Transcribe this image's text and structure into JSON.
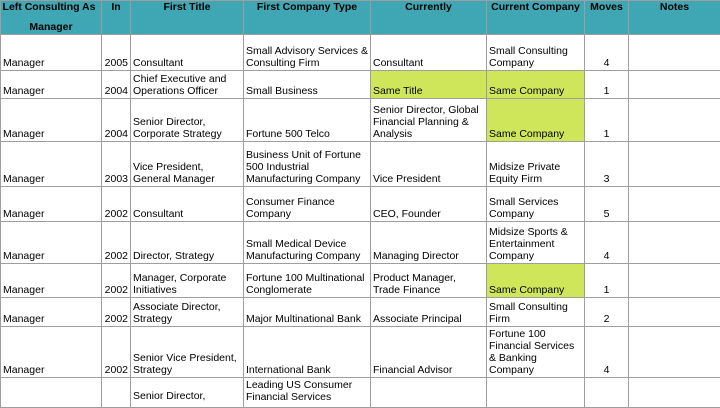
{
  "header": {
    "left_consulting_line1": "Left Consulting As",
    "left_consulting_line2": "Manager",
    "in": "In",
    "first_title": "First Title",
    "first_company_type": "First Company Type",
    "currently": "Currently",
    "current_company": "Current Company",
    "moves": "Moves",
    "notes": "Notes"
  },
  "colors": {
    "header_bg": "#3fa7b3",
    "highlight": "#cfe65a"
  },
  "rows": [
    {
      "left": "Manager",
      "in": "2005",
      "first_title": "Consultant",
      "first_company_type": "Small Advisory Services & Consulting Firm",
      "currently": "Consultant",
      "current_company": "Small Consulting Company",
      "moves": "4",
      "notes": ""
    },
    {
      "left": "Manager",
      "in": "2004",
      "first_title": "Chief Executive and Operations Officer",
      "first_company_type": "Small Business",
      "currently": "Same Title",
      "current_company": "Same Company",
      "moves": "1",
      "notes": ""
    },
    {
      "left": "Manager",
      "in": "2004",
      "first_title": "Senior Director, Corporate Strategy",
      "first_company_type": "Fortune 500 Telco",
      "currently": "Senior Director, Global Financial Planning & Analysis",
      "current_company": "Same Company",
      "moves": "1",
      "notes": ""
    },
    {
      "left": "Manager",
      "in": "2003",
      "first_title": "Vice President, General Manager",
      "first_company_type": "Business Unit of Fortune 500 Industrial Manufacturing Company",
      "currently": "Vice President",
      "current_company": "Midsize Private Equity Firm",
      "moves": "3",
      "notes": ""
    },
    {
      "left": "Manager",
      "in": "2002",
      "first_title": "Consultant",
      "first_company_type": "Consumer Finance Company",
      "currently": "CEO, Founder",
      "current_company": "Small Services Company",
      "moves": "5",
      "notes": ""
    },
    {
      "left": "Manager",
      "in": "2002",
      "first_title": "Director, Strategy",
      "first_company_type": "Small Medical Device Manufacturing Company",
      "currently": "Managing Director",
      "current_company": "Midsize Sports & Entertainment Company",
      "moves": "4",
      "notes": ""
    },
    {
      "left": "Manager",
      "in": "2002",
      "first_title": "Manager, Corporate Initiatives",
      "first_company_type": "Fortune 100 Multinational Conglomerate",
      "currently": "Product Manager, Trade Finance",
      "current_company": "Same Company",
      "moves": "1",
      "notes": ""
    },
    {
      "left": "Manager",
      "in": "2002",
      "first_title": "Associate Director, Strategy",
      "first_company_type": "Major Multinational Bank",
      "currently": "Associate Principal",
      "current_company": "Small Consulting Firm",
      "moves": "2",
      "notes": ""
    },
    {
      "left": "Manager",
      "in": "2002",
      "first_title": "Senior Vice President, Strategy",
      "first_company_type": "International Bank",
      "currently": "Financial Advisor",
      "current_company": "Fortune 100 Financial Services & Banking Company",
      "moves": "4",
      "notes": ""
    },
    {
      "left": "",
      "in": "",
      "first_title": "Senior Director,",
      "first_company_type": "Leading US Consumer Financial Services",
      "currently": "",
      "current_company": "",
      "moves": "",
      "notes": ""
    }
  ]
}
